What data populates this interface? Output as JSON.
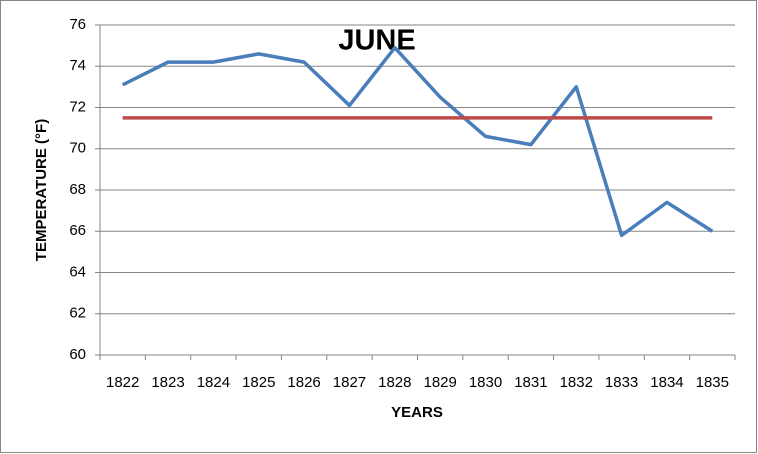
{
  "chart_data": {
    "type": "line",
    "title": "JUNE",
    "x_label": "YEARS",
    "y_label": "TEMPERATURE (°F)",
    "categories": [
      "1822",
      "1823",
      "1824",
      "1825",
      "1826",
      "1827",
      "1828",
      "1829",
      "1830",
      "1831",
      "1832",
      "1833",
      "1834",
      "1835"
    ],
    "series": [
      {
        "color": "#4a7ebb",
        "values": [
          73.1,
          74.2,
          74.2,
          74.6,
          74.2,
          72.1,
          74.9,
          72.5,
          70.6,
          70.2,
          73.0,
          65.8,
          67.4,
          66.0
        ]
      },
      {
        "color": "#be4b48",
        "values": [
          71.5,
          71.5,
          71.5,
          71.5,
          71.5,
          71.5,
          71.5,
          71.5,
          71.5,
          71.5,
          71.5,
          71.5,
          71.5,
          71.5
        ]
      }
    ],
    "ylim": [
      60,
      76
    ],
    "yticks": [
      60,
      62,
      64,
      66,
      68,
      70,
      72,
      74,
      76
    ],
    "grid": true
  }
}
